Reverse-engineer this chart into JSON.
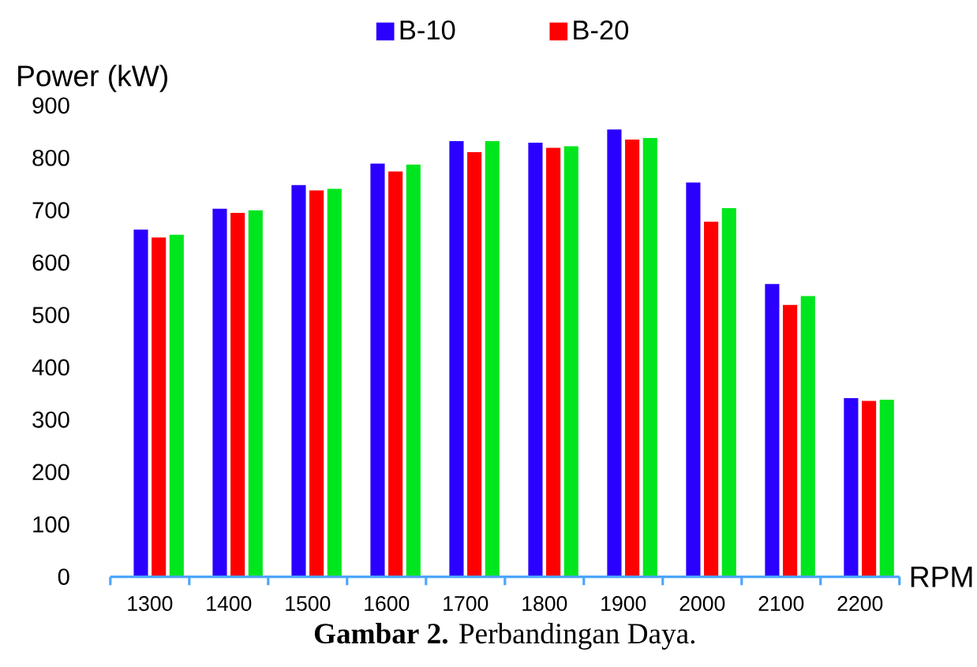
{
  "chart_data": {
    "type": "bar",
    "xlabel": "RPM",
    "ylabel": "Power (kW)",
    "categories": [
      "1300",
      "1400",
      "1500",
      "1600",
      "1700",
      "1800",
      "1900",
      "2000",
      "2100",
      "2200"
    ],
    "series": [
      {
        "name": "B-10",
        "color": "#2a00ff",
        "values": [
          663,
          703,
          748,
          789,
          832,
          829,
          854,
          753,
          559,
          341
        ]
      },
      {
        "name": "B-20",
        "color": "#ff0000",
        "values": [
          648,
          695,
          738,
          774,
          811,
          819,
          835,
          678,
          519,
          336
        ]
      },
      {
        "color": "#00e61e",
        "values": [
          653,
          700,
          741,
          787,
          832,
          822,
          838,
          704,
          536,
          338
        ]
      }
    ],
    "ylim": [
      0,
      900
    ],
    "yticks": [
      0,
      100,
      200,
      300,
      400,
      500,
      600,
      700,
      800,
      900
    ],
    "legend": "top",
    "annotations": [
      "**Gambar 2.** Perbandingan Daya."
    ]
  }
}
